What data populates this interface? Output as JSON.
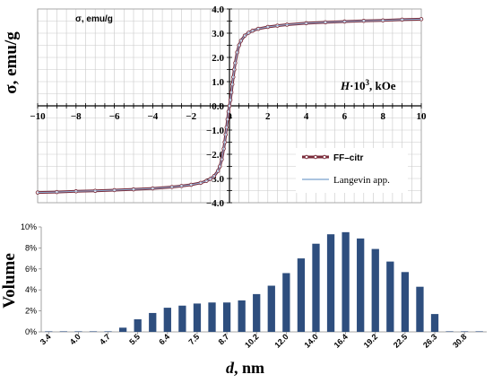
{
  "chart_data": [
    {
      "type": "line",
      "title": "",
      "ylabel": "σ, emu/g",
      "inner_ylabel": "σ, emu/g",
      "xlabel": "H·10³, kOe",
      "xlabel_parts": {
        "var": "H",
        "rest": "·10",
        "sup": "3",
        "unit": ", kOe"
      },
      "xlim": [
        -10,
        10
      ],
      "ylim": [
        -4.0,
        4.0
      ],
      "x_ticks": [
        "−10",
        "−8",
        "−6",
        "−4",
        "−2",
        "0",
        "2",
        "4",
        "6",
        "8",
        "10"
      ],
      "y_ticks": [
        "4.0",
        "3.0",
        "2.0",
        "1.0",
        "0.0",
        "−1.0",
        "−2.0",
        "−3.0",
        "−4.0"
      ],
      "grid": true,
      "legend_position": "lower-right",
      "series": [
        {
          "name": "FF–citr",
          "color": "#7a2b3a",
          "marker": "circle",
          "x": [
            -10,
            -9,
            -8,
            -7,
            -6,
            -5,
            -4,
            -3,
            -2.5,
            -2,
            -1.5,
            -1.2,
            -1.0,
            -0.8,
            -0.6,
            -0.5,
            -0.4,
            -0.3,
            -0.25,
            -0.2,
            -0.15,
            -0.1,
            -0.05,
            0,
            0.05,
            0.1,
            0.15,
            0.2,
            0.25,
            0.3,
            0.4,
            0.5,
            0.6,
            0.8,
            1.0,
            1.2,
            1.5,
            2,
            2.5,
            3,
            4,
            5,
            6,
            7,
            8,
            9,
            10
          ],
          "y": [
            -3.58,
            -3.56,
            -3.53,
            -3.51,
            -3.48,
            -3.45,
            -3.41,
            -3.35,
            -3.31,
            -3.26,
            -3.18,
            -3.1,
            -3.02,
            -2.9,
            -2.69,
            -2.5,
            -2.21,
            -1.77,
            -1.5,
            -1.19,
            -0.89,
            -0.56,
            -0.24,
            0.0,
            0.24,
            0.56,
            0.89,
            1.19,
            1.5,
            1.77,
            2.21,
            2.5,
            2.69,
            2.9,
            3.02,
            3.1,
            3.18,
            3.26,
            3.31,
            3.35,
            3.41,
            3.45,
            3.48,
            3.51,
            3.53,
            3.56,
            3.58
          ]
        },
        {
          "name": "Langevin app.",
          "color": "#8fb0d6",
          "marker": "none",
          "x": [
            -10,
            -9,
            -8,
            -7,
            -6,
            -5,
            -4,
            -3,
            -2.5,
            -2,
            -1.5,
            -1.2,
            -1.0,
            -0.8,
            -0.6,
            -0.5,
            -0.4,
            -0.3,
            -0.25,
            -0.2,
            -0.15,
            -0.1,
            -0.05,
            0,
            0.05,
            0.1,
            0.15,
            0.2,
            0.25,
            0.3,
            0.4,
            0.5,
            0.6,
            0.8,
            1.0,
            1.2,
            1.5,
            2,
            2.5,
            3,
            4,
            5,
            6,
            7,
            8,
            9,
            10
          ],
          "y": [
            -3.58,
            -3.56,
            -3.53,
            -3.51,
            -3.48,
            -3.45,
            -3.41,
            -3.35,
            -3.31,
            -3.26,
            -3.18,
            -3.1,
            -3.02,
            -2.9,
            -2.69,
            -2.5,
            -2.21,
            -1.77,
            -1.5,
            -1.19,
            -0.89,
            -0.56,
            -0.24,
            0.0,
            0.24,
            0.56,
            0.89,
            1.19,
            1.5,
            1.77,
            2.21,
            2.5,
            2.69,
            2.9,
            3.02,
            3.1,
            3.18,
            3.26,
            3.31,
            3.35,
            3.41,
            3.45,
            3.48,
            3.51,
            3.53,
            3.56,
            3.58
          ]
        }
      ]
    },
    {
      "type": "bar",
      "title": "",
      "ylabel": "Volume",
      "xlabel": "d, nm",
      "xlabel_parts": {
        "var": "d",
        "unit": ", nm"
      },
      "ylim": [
        0,
        10
      ],
      "y_ticks": [
        "0%",
        "2%",
        "4%",
        "6%",
        "8%",
        "10%"
      ],
      "color": "#2e4e7e",
      "categories": [
        "3.4",
        "3.7",
        "4.0",
        "4.3",
        "4.7",
        "5.1",
        "5.5",
        "5.9",
        "6.4",
        "6.9",
        "7.5",
        "8.1",
        "8.7",
        "9.4",
        "10.2",
        "11.0",
        "12.0",
        "12.9",
        "14.0",
        "15.1",
        "16.4",
        "17.7",
        "19.2",
        "20.8",
        "22.5",
        "24.3",
        "26.3",
        "28.5",
        "30.8",
        "33.3"
      ],
      "labeled_categories": [
        "3.4",
        "4.0",
        "4.7",
        "5.5",
        "6.4",
        "7.5",
        "8.7",
        "10.2",
        "12.0",
        "14.0",
        "16.4",
        "19.2",
        "22.5",
        "26.3",
        "30.8"
      ],
      "values": [
        0.05,
        0.05,
        0.05,
        0.05,
        0.05,
        0.4,
        1.2,
        1.8,
        2.3,
        2.5,
        2.7,
        2.8,
        2.8,
        3.0,
        3.6,
        4.4,
        5.6,
        7.0,
        8.4,
        9.3,
        9.5,
        8.9,
        7.9,
        6.7,
        5.7,
        4.3,
        1.7,
        0.05,
        0.05,
        0.05
      ]
    }
  ]
}
